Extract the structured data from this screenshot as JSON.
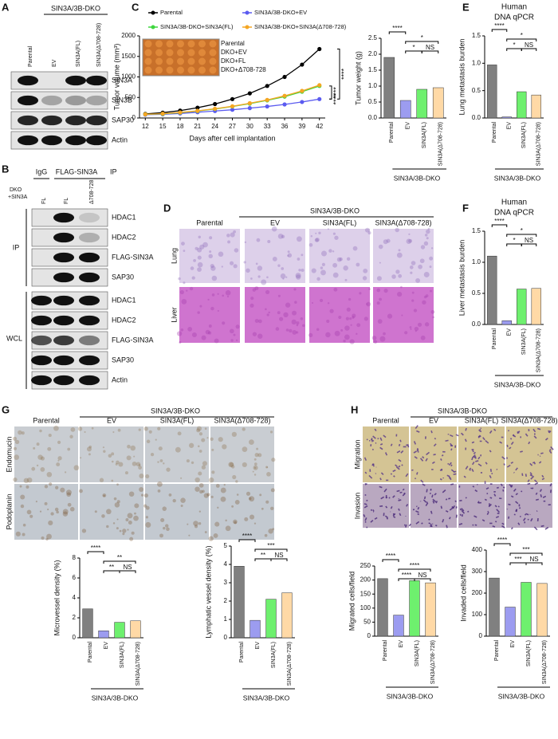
{
  "figure": {
    "panel_letters": [
      "A",
      "B",
      "C",
      "D",
      "E",
      "F",
      "G",
      "H"
    ],
    "blot_a": {
      "header": "SIN3A/3B-DKO",
      "lanes": [
        "Parental",
        "EV",
        "SIN3A(FL)",
        "SIN3A(Δ708-728)"
      ],
      "rows": [
        "SIN3A",
        "SIN3B",
        "SAP30",
        "Actin"
      ]
    },
    "blot_b": {
      "headers": [
        "IgG",
        "FLAG-SIN3A",
        "IP"
      ],
      "condition": [
        "DKO",
        "+SIN3A"
      ],
      "lanes": [
        "FL",
        "FL",
        "Δ708-728"
      ],
      "groups": [
        "IP",
        "WCL"
      ],
      "ip_rows": [
        "HDAC1",
        "HDAC2",
        "FLAG-SIN3A",
        "SAP30"
      ],
      "wcl_rows": [
        "HDAC1",
        "HDAC2",
        "FLAG-SIN3A",
        "SAP30",
        "Actin"
      ]
    },
    "tumor_photo_labels": [
      "Parental",
      "DKO+EV",
      "DKO+FL",
      "DKO+Δ708-728"
    ],
    "histology_d": {
      "header": "SIN3A/3B-DKO",
      "columns": [
        "Parental",
        "EV",
        "SIN3A(FL)",
        "SIN3A(Δ708-728)"
      ],
      "rows": [
        "Lung",
        "Liver"
      ]
    },
    "histology_g": {
      "header": "SIN3A/3B-DKO",
      "columns": [
        "Parental",
        "EV",
        "SIN3A(FL)",
        "SIN3A(Δ708-728)"
      ],
      "rows": [
        "Endomucin",
        "Podoplanin"
      ]
    },
    "transwell_h": {
      "header": "SIN3A/3B-DKO",
      "columns": [
        "Parental",
        "EV",
        "SIN3A(FL)",
        "SIN3A(Δ708-728)"
      ],
      "rows": [
        "Migration",
        "Invasion"
      ]
    }
  },
  "chart_data": [
    {
      "type": "line",
      "xlabel": "Days after cell implantation",
      "ylabel": "Tumor volume (mm³)",
      "x": [
        12,
        15,
        18,
        21,
        24,
        27,
        30,
        33,
        36,
        39,
        42
      ],
      "xlim": [
        11,
        43
      ],
      "xticks": [
        12,
        15,
        18,
        21,
        24,
        27,
        30,
        33,
        36,
        39,
        42
      ],
      "ylim": [
        0,
        2000
      ],
      "yticks": [
        0,
        500,
        1000,
        1500,
        2000
      ],
      "series": [
        {
          "name": "Parental",
          "color": "#000000",
          "values": [
            100,
            130,
            180,
            250,
            340,
            460,
            600,
            780,
            1000,
            1300,
            1680
          ]
        },
        {
          "name": "SIN3A/3B-DKO+EV",
          "color": "#5b5bf0",
          "values": [
            80,
            90,
            110,
            140,
            170,
            200,
            240,
            280,
            330,
            390,
            460
          ]
        },
        {
          "name": "SIN3A/3B-DKO+SIN3A(FL)",
          "color": "#3ed63e",
          "values": [
            90,
            100,
            130,
            170,
            220,
            280,
            350,
            430,
            520,
            640,
            780
          ]
        },
        {
          "name": "SIN3A/3B-DKO+SIN3A(Δ708-728)",
          "color": "#f5a623",
          "values": [
            90,
            105,
            135,
            175,
            225,
            285,
            360,
            440,
            540,
            660,
            800
          ]
        }
      ],
      "annotations": [
        "****",
        "****",
        "****"
      ]
    },
    {
      "type": "bar",
      "ylabel": "Tumor weight (g)",
      "categories": [
        "Parental",
        "EV",
        "SIN3A(FL)",
        "SIN3A(Δ708-728)"
      ],
      "values": [
        1.9,
        0.55,
        0.9,
        0.95
      ],
      "colors": [
        "#808080",
        "#9c9cf0",
        "#6ef06e",
        "#ffd9a6"
      ],
      "ylim": [
        0,
        2.5
      ],
      "yticks": [
        {
          "value": 0,
          "label": "0.0"
        },
        0.5,
        {
          "value": 1,
          "label": "1.0"
        },
        1.5,
        {
          "value": 2,
          "label": "2.0"
        },
        2.5
      ],
      "group_label": "SIN3A/3B-DKO",
      "annotations": [
        "****",
        "*",
        "*",
        "NS"
      ]
    },
    {
      "type": "bar",
      "title": [
        "Human",
        "DNA qPCR"
      ],
      "ylabel": "Lung metastasis burden",
      "categories": [
        "Parental",
        "EV",
        "SIN3A(FL)",
        "SIN3A(Δ708-728)"
      ],
      "values": [
        0.97,
        0.02,
        0.48,
        0.42
      ],
      "colors": [
        "#808080",
        "#9c9cf0",
        "#6ef06e",
        "#ffd9a6"
      ],
      "ylim": [
        0,
        1.5
      ],
      "yticks": [
        {
          "value": 0,
          "label": "0.0"
        },
        0.5,
        {
          "value": 1,
          "label": "1.0"
        },
        1.5
      ],
      "group_label": "SIN3A/3B-DKO",
      "annotations": [
        "****",
        "*",
        "*",
        "NS"
      ]
    },
    {
      "type": "bar",
      "title": [
        "Human",
        "DNA qPCR"
      ],
      "ylabel": "Liver metastasis burden",
      "categories": [
        "Parental",
        "EV",
        "SIN3A(FL)",
        "SIN3A(Δ708-728)"
      ],
      "values": [
        1.1,
        0.06,
        0.57,
        0.58
      ],
      "colors": [
        "#808080",
        "#9c9cf0",
        "#6ef06e",
        "#ffd9a6"
      ],
      "ylim": [
        0,
        1.5
      ],
      "yticks": [
        {
          "value": 0,
          "label": "0.0"
        },
        0.5,
        {
          "value": 1,
          "label": "1.0"
        },
        1.5
      ],
      "group_label": "SIN3A/3B-DKO",
      "annotations": [
        "****",
        "*",
        "*",
        "NS"
      ]
    },
    {
      "type": "bar",
      "ylabel": "Microvessel density (%)",
      "categories": [
        "Parental",
        "EV",
        "SIN3A(FL)",
        "SIN3A(Δ708-728)"
      ],
      "values": [
        2.9,
        0.7,
        1.55,
        1.7
      ],
      "colors": [
        "#808080",
        "#9c9cf0",
        "#6ef06e",
        "#ffd9a6"
      ],
      "ylim": [
        0,
        8
      ],
      "yticks": [
        0,
        2,
        4,
        6,
        8
      ],
      "group_label": "SIN3A/3B-DKO",
      "annotations": [
        "****",
        "**",
        "**",
        "NS"
      ]
    },
    {
      "type": "bar",
      "ylabel": "Lymphatic vessel density (%)",
      "categories": [
        "Parental",
        "EV",
        "SIN3A(FL)",
        "SIN3A(Δ708-728)"
      ],
      "values": [
        3.9,
        0.95,
        2.1,
        2.45
      ],
      "colors": [
        "#808080",
        "#9c9cf0",
        "#6ef06e",
        "#ffd9a6"
      ],
      "ylim": [
        0,
        5
      ],
      "yticks": [
        0,
        1,
        2,
        3,
        4,
        5
      ],
      "group_label": "SIN3A/3B-DKO",
      "annotations": [
        "****",
        "***",
        "**",
        "NS"
      ]
    },
    {
      "type": "bar",
      "ylabel": "Migrated cells/field",
      "categories": [
        "Parental",
        "EV",
        "SIN3A(FL)",
        "SIN3A(Δ708-728)"
      ],
      "values": [
        205,
        75,
        198,
        190
      ],
      "colors": [
        "#808080",
        "#9c9cf0",
        "#6ef06e",
        "#ffd9a6"
      ],
      "ylim": [
        0,
        250
      ],
      "yticks": [
        0,
        50,
        100,
        150,
        200,
        250
      ],
      "group_label": "SIN3A/3B-DKO",
      "annotations": [
        "****",
        "****",
        "****",
        "NS"
      ]
    },
    {
      "type": "bar",
      "ylabel": "Invaded cells/field",
      "categories": [
        "Parental",
        "EV",
        "SIN3A(FL)",
        "SIN3A(Δ708-728)"
      ],
      "values": [
        270,
        135,
        250,
        245
      ],
      "colors": [
        "#808080",
        "#9c9cf0",
        "#6ef06e",
        "#ffd9a6"
      ],
      "ylim": [
        0,
        400
      ],
      "yticks": [
        0,
        100,
        200,
        300,
        400
      ],
      "group_label": "SIN3A/3B-DKO",
      "annotations": [
        "****",
        "***",
        "***",
        "NS"
      ]
    }
  ]
}
